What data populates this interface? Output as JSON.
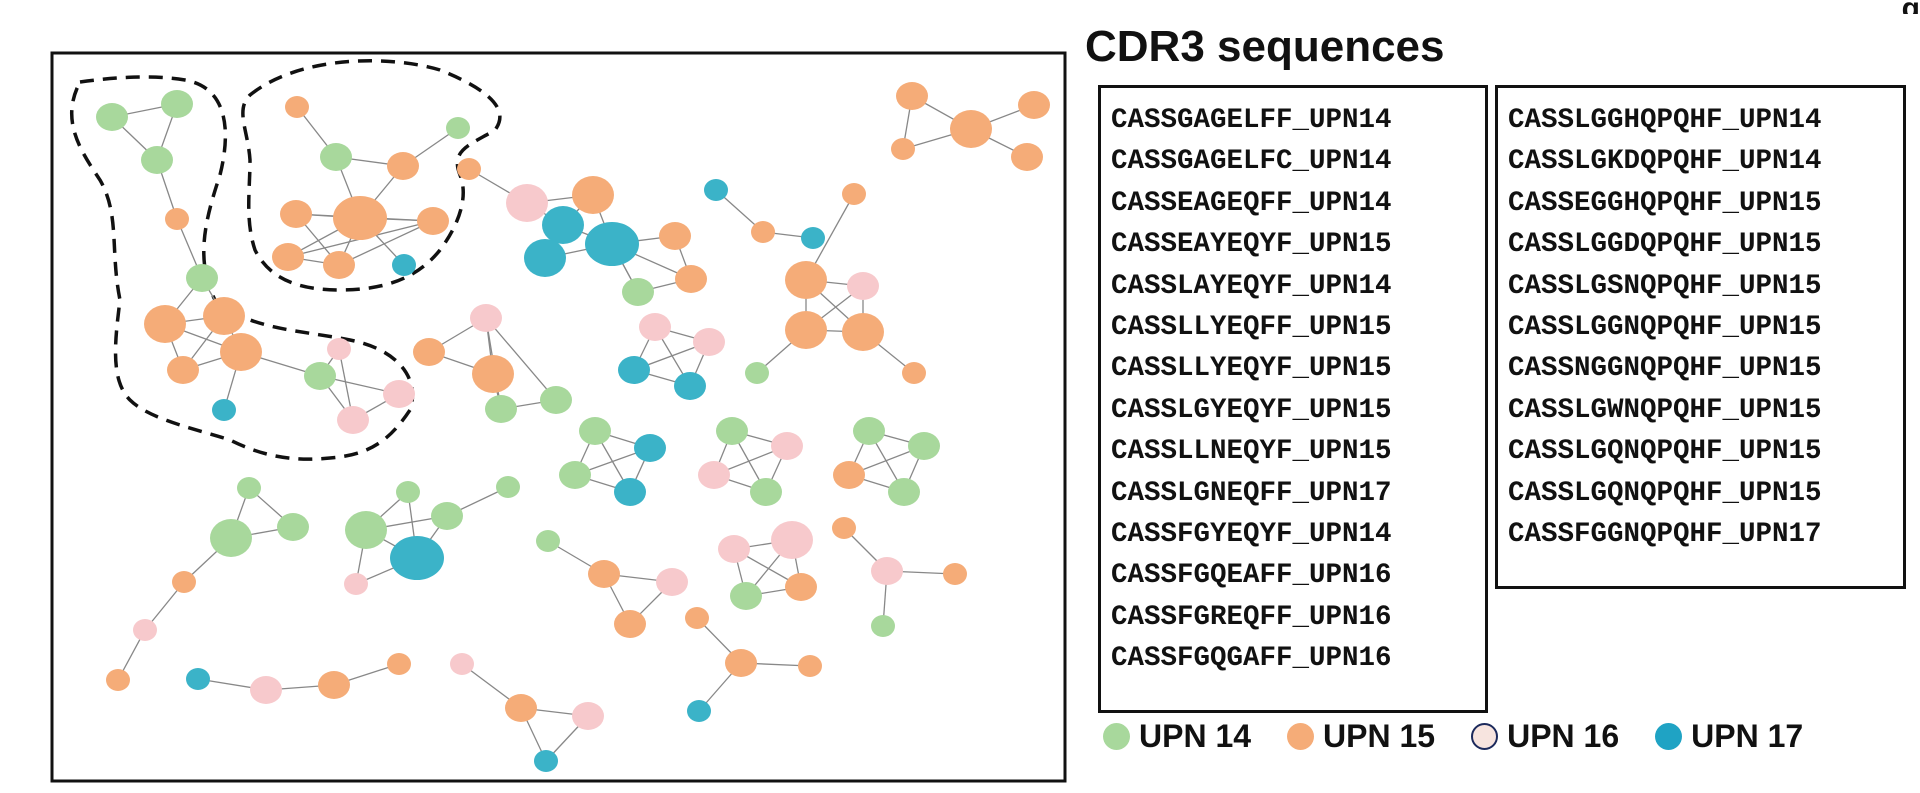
{
  "figure": {
    "panel_letter": "g",
    "title": "CDR3 sequences"
  },
  "colors": {
    "upn14": "#a8d89c",
    "upn15": "#f5ac78",
    "upn16": "#f7c9cc",
    "upn17": "#3bb3c8",
    "edge": "#888888",
    "frame": "#111111"
  },
  "legend": [
    {
      "label": "UPN 14",
      "color": "#a8d89c",
      "outline": false
    },
    {
      "label": "UPN 15",
      "color": "#f5ac78",
      "outline": false
    },
    {
      "label": "UPN 16",
      "color": "#f7e4df",
      "outline": true
    },
    {
      "label": "UPN 17",
      "color": "#1fa3c4",
      "outline": false
    }
  ],
  "sequences_col1": [
    "CASSGAGELFF_UPN14",
    "CASSGAGELFC_UPN14",
    "CASSEAGEQFF_UPN14",
    "CASSEAYEQYF_UPN15",
    "CASSLAYEQYF_UPN14",
    "CASSLLYEQFF_UPN15",
    "CASSLLYEQYF_UPN15",
    "CASSLGYEQYF_UPN15",
    "CASSLLNEQYF_UPN15",
    "CASSLGNEQFF_UPN17",
    "CASSFGYEQYF_UPN14",
    "CASSFGQEAFF_UPN16",
    "CASSFGREQFF_UPN16",
    "CASSFGQGAFF_UPN16"
  ],
  "sequences_col2": [
    "CASSLGGHQPQHF_UPN14",
    "CASSLGKDQPQHF_UPN14",
    "CASSEGGHQPQHF_UPN15",
    "CASSLGGDQPQHF_UPN15",
    "CASSLGSNQPQHF_UPN15",
    "CASSLGGNQPQHF_UPN15",
    "CASSNGGNQPQHF_UPN15",
    "CASSLGWNQPQHF_UPN15",
    "CASSLGQNQPQHF_UPN15",
    "CASSLGQNQPQHF_UPN15",
    "CASSFGGNQPQHF_UPN17"
  ],
  "network": {
    "nodes": [
      {
        "id": "A1",
        "g": "upn14",
        "s": "m"
      },
      {
        "id": "A2",
        "g": "upn14",
        "s": "m"
      },
      {
        "id": "A3",
        "g": "upn14",
        "s": "m"
      },
      {
        "id": "A4",
        "g": "upn15",
        "s": "s"
      },
      {
        "id": "A5",
        "g": "upn14",
        "s": "m"
      },
      {
        "id": "A6",
        "g": "upn15",
        "s": "l"
      },
      {
        "id": "A7",
        "g": "upn15",
        "s": "l"
      },
      {
        "id": "A8",
        "g": "upn15",
        "s": "l"
      },
      {
        "id": "A9",
        "g": "upn15",
        "s": "m"
      },
      {
        "id": "A10",
        "g": "upn17",
        "s": "s"
      },
      {
        "id": "A11",
        "g": "upn14",
        "s": "m"
      },
      {
        "id": "A12",
        "g": "upn16",
        "s": "s"
      },
      {
        "id": "A13",
        "g": "upn16",
        "s": "m"
      },
      {
        "id": "A14",
        "g": "upn16",
        "s": "m"
      },
      {
        "id": "B1",
        "g": "upn15",
        "s": "s"
      },
      {
        "id": "B2",
        "g": "upn14",
        "s": "s"
      },
      {
        "id": "B3",
        "g": "upn14",
        "s": "m"
      },
      {
        "id": "B4",
        "g": "upn15",
        "s": "m"
      },
      {
        "id": "B5",
        "g": "upn15",
        "s": "xl"
      },
      {
        "id": "B6",
        "g": "upn15",
        "s": "m"
      },
      {
        "id": "B7",
        "g": "upn15",
        "s": "m"
      },
      {
        "id": "B8",
        "g": "upn15",
        "s": "m"
      },
      {
        "id": "B9",
        "g": "upn15",
        "s": "m"
      },
      {
        "id": "B10",
        "g": "upn17",
        "s": "s"
      },
      {
        "id": "C1",
        "g": "upn15",
        "s": "s"
      },
      {
        "id": "C2",
        "g": "upn16",
        "s": "l"
      },
      {
        "id": "C3",
        "g": "upn15",
        "s": "l"
      },
      {
        "id": "C4",
        "g": "upn17",
        "s": "l"
      },
      {
        "id": "C5",
        "g": "upn17",
        "s": "l"
      },
      {
        "id": "C6",
        "g": "upn17",
        "s": "xl"
      },
      {
        "id": "C7",
        "g": "upn15",
        "s": "m"
      },
      {
        "id": "C8",
        "g": "upn15",
        "s": "m"
      },
      {
        "id": "C9",
        "g": "upn14",
        "s": "m"
      },
      {
        "id": "D1",
        "g": "upn15",
        "s": "m"
      },
      {
        "id": "D2",
        "g": "upn15",
        "s": "s"
      },
      {
        "id": "D3",
        "g": "upn15",
        "s": "l"
      },
      {
        "id": "D4",
        "g": "upn15",
        "s": "m"
      },
      {
        "id": "D5",
        "g": "upn15",
        "s": "m"
      },
      {
        "id": "E1",
        "g": "upn16",
        "s": "m"
      },
      {
        "id": "E2",
        "g": "upn16",
        "s": "m"
      },
      {
        "id": "E3",
        "g": "upn17",
        "s": "m"
      },
      {
        "id": "E4",
        "g": "upn17",
        "s": "m"
      },
      {
        "id": "F1",
        "g": "upn17",
        "s": "s"
      },
      {
        "id": "F2",
        "g": "upn15",
        "s": "s"
      },
      {
        "id": "F3",
        "g": "upn17",
        "s": "s"
      },
      {
        "id": "G1",
        "g": "upn15",
        "s": "s"
      },
      {
        "id": "G2",
        "g": "upn15",
        "s": "l"
      },
      {
        "id": "G3",
        "g": "upn16",
        "s": "m"
      },
      {
        "id": "G4",
        "g": "upn15",
        "s": "l"
      },
      {
        "id": "G5",
        "g": "upn15",
        "s": "l"
      },
      {
        "id": "G6",
        "g": "upn14",
        "s": "s"
      },
      {
        "id": "G7",
        "g": "upn15",
        "s": "s"
      },
      {
        "id": "H1",
        "g": "upn15",
        "s": "m"
      },
      {
        "id": "H2",
        "g": "upn15",
        "s": "l"
      },
      {
        "id": "H3",
        "g": "upn16",
        "s": "m"
      },
      {
        "id": "H4",
        "g": "upn14",
        "s": "m"
      },
      {
        "id": "H5",
        "g": "upn14",
        "s": "m"
      },
      {
        "id": "I1",
        "g": "upn14",
        "s": "m"
      },
      {
        "id": "I2",
        "g": "upn17",
        "s": "m"
      },
      {
        "id": "I3",
        "g": "upn14",
        "s": "m"
      },
      {
        "id": "I4",
        "g": "upn17",
        "s": "m"
      },
      {
        "id": "J1",
        "g": "upn14",
        "s": "m"
      },
      {
        "id": "J2",
        "g": "upn16",
        "s": "m"
      },
      {
        "id": "J3",
        "g": "upn16",
        "s": "m"
      },
      {
        "id": "J4",
        "g": "upn14",
        "s": "m"
      },
      {
        "id": "K1",
        "g": "upn14",
        "s": "m"
      },
      {
        "id": "K2",
        "g": "upn14",
        "s": "m"
      },
      {
        "id": "K3",
        "g": "upn15",
        "s": "m"
      },
      {
        "id": "K4",
        "g": "upn14",
        "s": "m"
      },
      {
        "id": "L1",
        "g": "upn14",
        "s": "s"
      },
      {
        "id": "L2",
        "g": "upn14",
        "s": "l"
      },
      {
        "id": "L3",
        "g": "upn14",
        "s": "m"
      },
      {
        "id": "L4",
        "g": "upn15",
        "s": "s"
      },
      {
        "id": "L5",
        "g": "upn16",
        "s": "s"
      },
      {
        "id": "L6",
        "g": "upn15",
        "s": "s"
      },
      {
        "id": "M1",
        "g": "upn14",
        "s": "s"
      },
      {
        "id": "M2",
        "g": "upn14",
        "s": "l"
      },
      {
        "id": "M3",
        "g": "upn17",
        "s": "xl"
      },
      {
        "id": "M4",
        "g": "upn14",
        "s": "m"
      },
      {
        "id": "M5",
        "g": "upn14",
        "s": "s"
      },
      {
        "id": "M6",
        "g": "upn16",
        "s": "s"
      },
      {
        "id": "N1",
        "g": "upn14",
        "s": "s"
      },
      {
        "id": "N2",
        "g": "upn15",
        "s": "m"
      },
      {
        "id": "N3",
        "g": "upn16",
        "s": "m"
      },
      {
        "id": "N4",
        "g": "upn15",
        "s": "m"
      },
      {
        "id": "O1",
        "g": "upn16",
        "s": "m"
      },
      {
        "id": "O2",
        "g": "upn16",
        "s": "l"
      },
      {
        "id": "O3",
        "g": "upn14",
        "s": "m"
      },
      {
        "id": "O4",
        "g": "upn15",
        "s": "m"
      },
      {
        "id": "P1",
        "g": "upn15",
        "s": "s"
      },
      {
        "id": "P2",
        "g": "upn16",
        "s": "m"
      },
      {
        "id": "P3",
        "g": "upn15",
        "s": "s"
      },
      {
        "id": "P4",
        "g": "upn14",
        "s": "s"
      },
      {
        "id": "Q1",
        "g": "upn17",
        "s": "s"
      },
      {
        "id": "Q2",
        "g": "upn16",
        "s": "m"
      },
      {
        "id": "Q3",
        "g": "upn15",
        "s": "m"
      },
      {
        "id": "Q4",
        "g": "upn15",
        "s": "s"
      },
      {
        "id": "R1",
        "g": "upn16",
        "s": "s"
      },
      {
        "id": "R2",
        "g": "upn15",
        "s": "m"
      },
      {
        "id": "R3",
        "g": "upn16",
        "s": "m"
      },
      {
        "id": "R4",
        "g": "upn17",
        "s": "s"
      },
      {
        "id": "S1",
        "g": "upn15",
        "s": "s"
      },
      {
        "id": "S2",
        "g": "upn15",
        "s": "m"
      },
      {
        "id": "S3",
        "g": "upn15",
        "s": "s"
      },
      {
        "id": "S4",
        "g": "upn17",
        "s": "s"
      }
    ],
    "edges": [
      [
        "A1",
        "A2"
      ],
      [
        "A2",
        "A3"
      ],
      [
        "A1",
        "A3"
      ],
      [
        "A3",
        "A4"
      ],
      [
        "A4",
        "A5"
      ],
      [
        "A5",
        "A6"
      ],
      [
        "A5",
        "A7"
      ],
      [
        "A6",
        "A7"
      ],
      [
        "A6",
        "A8"
      ],
      [
        "A6",
        "A9"
      ],
      [
        "A7",
        "A8"
      ],
      [
        "A7",
        "A9"
      ],
      [
        "A8",
        "A9"
      ],
      [
        "A8",
        "A10"
      ],
      [
        "A8",
        "A11"
      ],
      [
        "A11",
        "A12"
      ],
      [
        "A11",
        "A13"
      ],
      [
        "A11",
        "A14"
      ],
      [
        "A13",
        "A14"
      ],
      [
        "A12",
        "A13"
      ],
      [
        "B1",
        "B3"
      ],
      [
        "B3",
        "B5"
      ],
      [
        "B2",
        "B4"
      ],
      [
        "B4",
        "B5"
      ],
      [
        "B4",
        "B3"
      ],
      [
        "B5",
        "B6"
      ],
      [
        "B5",
        "B7"
      ],
      [
        "B5",
        "B8"
      ],
      [
        "B5",
        "B9"
      ],
      [
        "B5",
        "B10"
      ],
      [
        "B7",
        "B6"
      ],
      [
        "B7",
        "B8"
      ],
      [
        "B8",
        "B9"
      ],
      [
        "B7",
        "B9"
      ],
      [
        "B6",
        "B8"
      ],
      [
        "C1",
        "C2"
      ],
      [
        "C2",
        "C3"
      ],
      [
        "C2",
        "C4"
      ],
      [
        "C3",
        "C4"
      ],
      [
        "C4",
        "C5"
      ],
      [
        "C4",
        "C6"
      ],
      [
        "C5",
        "C6"
      ],
      [
        "C3",
        "C6"
      ],
      [
        "C6",
        "C7"
      ],
      [
        "C6",
        "C8"
      ],
      [
        "C6",
        "C9"
      ],
      [
        "C7",
        "C8"
      ],
      [
        "C8",
        "C9"
      ],
      [
        "C9",
        "C6"
      ],
      [
        "D1",
        "D2"
      ],
      [
        "D2",
        "D3"
      ],
      [
        "D1",
        "D3"
      ],
      [
        "D3",
        "D4"
      ],
      [
        "D3",
        "D5"
      ],
      [
        "E1",
        "E2"
      ],
      [
        "E1",
        "E3"
      ],
      [
        "E1",
        "E4"
      ],
      [
        "E2",
        "E3"
      ],
      [
        "E2",
        "E4"
      ],
      [
        "E3",
        "E4"
      ],
      [
        "F1",
        "F2"
      ],
      [
        "F2",
        "F3"
      ],
      [
        "G1",
        "G2"
      ],
      [
        "G2",
        "G3"
      ],
      [
        "G3",
        "G4"
      ],
      [
        "G2",
        "G4"
      ],
      [
        "G2",
        "G5"
      ],
      [
        "G4",
        "G5"
      ],
      [
        "G3",
        "G5"
      ],
      [
        "G4",
        "G6"
      ],
      [
        "G5",
        "G7"
      ],
      [
        "H1",
        "H2"
      ],
      [
        "H1",
        "H3"
      ],
      [
        "H2",
        "H3"
      ],
      [
        "H2",
        "H4"
      ],
      [
        "H3",
        "H4"
      ],
      [
        "H3",
        "H5"
      ],
      [
        "H4",
        "H5"
      ],
      [
        "I1",
        "I2"
      ],
      [
        "I1",
        "I3"
      ],
      [
        "I1",
        "I4"
      ],
      [
        "I2",
        "I3"
      ],
      [
        "I3",
        "I4"
      ],
      [
        "I2",
        "I4"
      ],
      [
        "J1",
        "J2"
      ],
      [
        "J1",
        "J3"
      ],
      [
        "J1",
        "J4"
      ],
      [
        "J2",
        "J3"
      ],
      [
        "J2",
        "J4"
      ],
      [
        "J3",
        "J4"
      ],
      [
        "K1",
        "K2"
      ],
      [
        "K1",
        "K3"
      ],
      [
        "K1",
        "K4"
      ],
      [
        "K2",
        "K3"
      ],
      [
        "K2",
        "K4"
      ],
      [
        "K3",
        "K4"
      ],
      [
        "L1",
        "L2"
      ],
      [
        "L1",
        "L3"
      ],
      [
        "L2",
        "L3"
      ],
      [
        "L2",
        "L4"
      ],
      [
        "L4",
        "L5"
      ],
      [
        "L5",
        "L6"
      ],
      [
        "M1",
        "M2"
      ],
      [
        "M1",
        "M3"
      ],
      [
        "M2",
        "M3"
      ],
      [
        "M3",
        "M4"
      ],
      [
        "M4",
        "M5"
      ],
      [
        "M2",
        "M6"
      ],
      [
        "M3",
        "M6"
      ],
      [
        "M2",
        "M4"
      ],
      [
        "N1",
        "N2"
      ],
      [
        "N2",
        "N3"
      ],
      [
        "N2",
        "N4"
      ],
      [
        "N3",
        "N4"
      ],
      [
        "O1",
        "O2"
      ],
      [
        "O1",
        "O3"
      ],
      [
        "O1",
        "O4"
      ],
      [
        "O2",
        "O3"
      ],
      [
        "O2",
        "O4"
      ],
      [
        "O3",
        "O4"
      ],
      [
        "P1",
        "P2"
      ],
      [
        "P2",
        "P3"
      ],
      [
        "P2",
        "P4"
      ],
      [
        "Q1",
        "Q2"
      ],
      [
        "Q2",
        "Q3"
      ],
      [
        "Q3",
        "Q4"
      ],
      [
        "R1",
        "R2"
      ],
      [
        "R2",
        "R3"
      ],
      [
        "R2",
        "R4"
      ],
      [
        "R3",
        "R4"
      ],
      [
        "S1",
        "S2"
      ],
      [
        "S2",
        "S3"
      ],
      [
        "S2",
        "S4"
      ]
    ]
  }
}
